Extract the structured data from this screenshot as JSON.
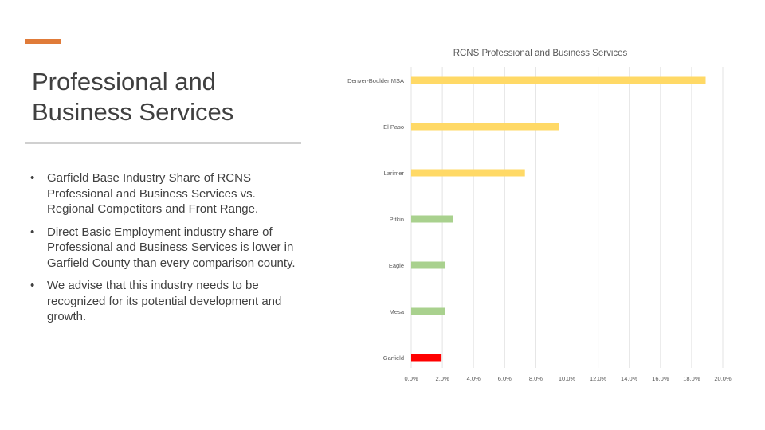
{
  "slide": {
    "title": "Professional and Business Services",
    "bullets": [
      "Garfield Base Industry Share of RCNS Professional and Business Services vs. Regional Competitors and Front Range.",
      "Direct Basic Employment industry share of Professional and Business Services is lower in Garfield County than every comparison county.",
      "We advise that this industry needs to be recognized for its potential development and growth."
    ],
    "bullet_symbol": "•",
    "accent_color": "#E07B39"
  },
  "chart_data": {
    "type": "bar",
    "orientation": "horizontal",
    "title": "RCNS Professional and Business Services",
    "categories": [
      "Denver-Boulder MSA",
      "El Paso",
      "Larimer",
      "Pitkin",
      "Eagle",
      "Mesa",
      "Garfield"
    ],
    "values": [
      18.9,
      9.5,
      7.3,
      2.7,
      2.2,
      2.15,
      1.95
    ],
    "colors": [
      "#FFD966",
      "#FFD966",
      "#FFD966",
      "#A9D18E",
      "#A9D18E",
      "#A9D18E",
      "#FF0000"
    ],
    "xlim": [
      0,
      20
    ],
    "xticks": [
      "0,0%",
      "2,0%",
      "4,0%",
      "6,0%",
      "8,0%",
      "10,0%",
      "12,0%",
      "14,0%",
      "16,0%",
      "18,0%",
      "20,0%"
    ],
    "grid": true,
    "xlabel": "",
    "ylabel": ""
  }
}
